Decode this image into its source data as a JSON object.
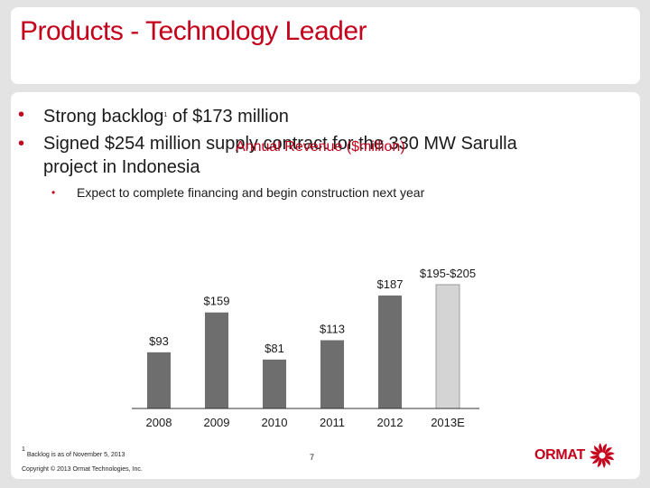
{
  "slide": {
    "title": "Products - Technology Leader",
    "bullets": [
      {
        "pre": "Strong backlog",
        "sup": "1",
        "post": " of $173 million"
      },
      {
        "line1": "Signed $254 million supply contract for the 330 MW Sarulla",
        "line2": "project in Indonesia"
      }
    ],
    "sub_bullet": "Expect to complete financing and begin construction next year",
    "bullet_glyph": "•",
    "footnote_marker": "1",
    "footnote": "Backlog is as of November 5, 2013",
    "page_number": "7",
    "copyright": "Copyright © 2013 Ormat Technologies, Inc.",
    "logo_text": "ORMAT",
    "logo_icon": "ormat-turbine-icon"
  },
  "chart_data": {
    "type": "bar",
    "title": "Annual Revenue ($million)",
    "categories": [
      "2008",
      "2009",
      "2010",
      "2011",
      "2012",
      "2013E"
    ],
    "values": [
      93,
      159,
      81,
      113,
      187,
      200
    ],
    "data_labels": [
      "$93",
      "$159",
      "$81",
      "$113",
      "$187",
      "$195-$205"
    ],
    "range": {
      "category": "2013E",
      "low": 195,
      "high": 205
    },
    "xlabel": "",
    "ylabel": "",
    "ylim": [
      0,
      205
    ],
    "grid": false,
    "colors": {
      "actual": "#6e6e6e",
      "estimate": "#d4d4d4"
    }
  }
}
